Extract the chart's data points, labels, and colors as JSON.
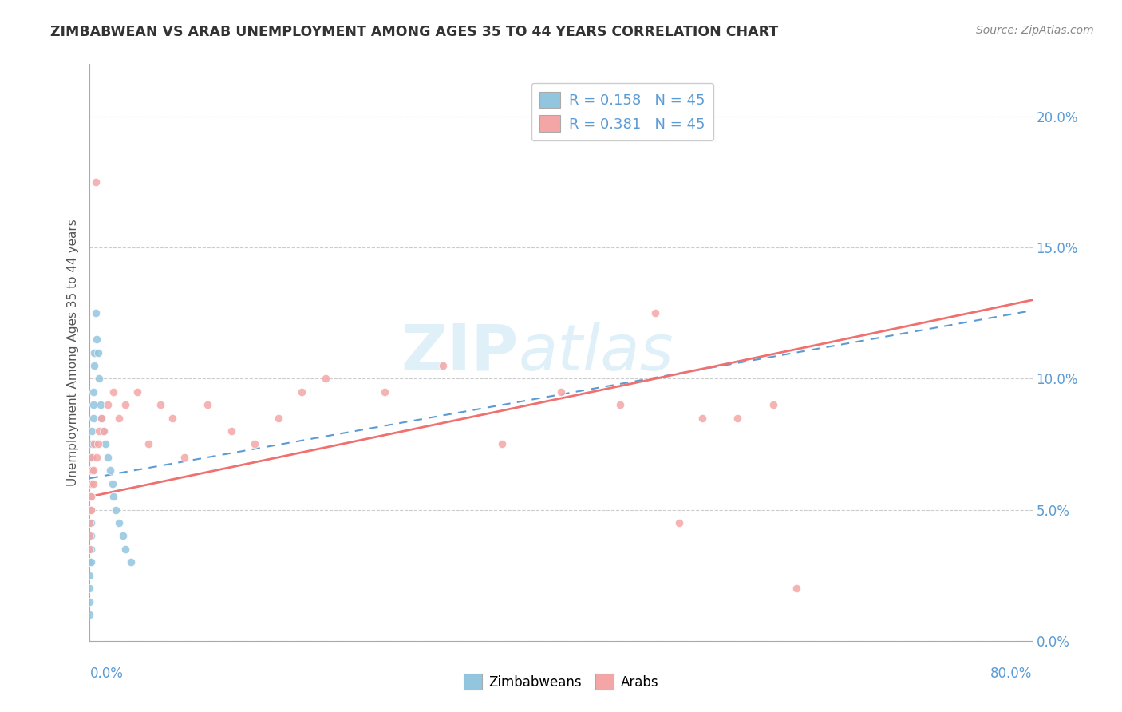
{
  "title": "ZIMBABWEAN VS ARAB UNEMPLOYMENT AMONG AGES 35 TO 44 YEARS CORRELATION CHART",
  "source": "Source: ZipAtlas.com",
  "ylabel": "Unemployment Among Ages 35 to 44 years",
  "ytick_values": [
    0.0,
    5.0,
    10.0,
    15.0,
    20.0
  ],
  "xlim": [
    0.0,
    80.0
  ],
  "ylim": [
    0.0,
    22.0
  ],
  "legend_R_zimbabwean": "R = 0.158",
  "legend_N_zimbabwean": "N = 45",
  "legend_R_arab": "R = 0.381",
  "legend_N_arab": "N = 45",
  "zimbabwean_color": "#92C5DE",
  "arab_color": "#F4A6A6",
  "zimbabwean_line_color": "#5B9BD5",
  "arab_line_color": "#F07070",
  "watermark_zip": "ZIP",
  "watermark_atlas": "atlas",
  "background_color": "#FFFFFF",
  "zimbabwean_x": [
    0.0,
    0.0,
    0.0,
    0.0,
    0.0,
    0.0,
    0.0,
    0.0,
    0.0,
    0.0,
    0.1,
    0.1,
    0.1,
    0.1,
    0.1,
    0.1,
    0.1,
    0.1,
    0.2,
    0.2,
    0.2,
    0.2,
    0.2,
    0.3,
    0.3,
    0.3,
    0.4,
    0.4,
    0.5,
    0.6,
    0.7,
    0.8,
    0.9,
    1.0,
    1.1,
    1.3,
    1.5,
    1.7,
    1.9,
    2.0,
    2.2,
    2.5,
    2.8,
    3.0,
    3.5
  ],
  "zimbabwean_y": [
    5.5,
    5.0,
    4.5,
    4.0,
    3.5,
    3.0,
    2.5,
    2.0,
    1.5,
    1.0,
    6.5,
    6.0,
    5.5,
    5.0,
    4.5,
    4.0,
    3.5,
    3.0,
    8.0,
    7.5,
    7.0,
    6.5,
    6.0,
    9.5,
    9.0,
    8.5,
    11.0,
    10.5,
    12.5,
    11.5,
    11.0,
    10.0,
    9.0,
    8.5,
    8.0,
    7.5,
    7.0,
    6.5,
    6.0,
    5.5,
    5.0,
    4.5,
    4.0,
    3.5,
    3.0
  ],
  "arab_x": [
    0.0,
    0.0,
    0.0,
    0.0,
    0.0,
    0.1,
    0.1,
    0.1,
    0.2,
    0.2,
    0.3,
    0.3,
    0.4,
    0.5,
    0.6,
    0.7,
    0.8,
    1.0,
    1.2,
    1.5,
    2.0,
    2.5,
    3.0,
    4.0,
    5.0,
    6.0,
    7.0,
    8.0,
    10.0,
    12.0,
    14.0,
    16.0,
    18.0,
    20.0,
    25.0,
    30.0,
    35.0,
    40.0,
    45.0,
    48.0,
    50.0,
    52.0,
    55.0,
    58.0,
    60.0
  ],
  "arab_y": [
    5.5,
    5.0,
    4.5,
    4.0,
    3.5,
    6.0,
    5.5,
    5.0,
    7.0,
    6.5,
    6.5,
    6.0,
    7.5,
    17.5,
    7.0,
    7.5,
    8.0,
    8.5,
    8.0,
    9.0,
    9.5,
    8.5,
    9.0,
    9.5,
    7.5,
    9.0,
    8.5,
    7.0,
    9.0,
    8.0,
    7.5,
    8.5,
    9.5,
    10.0,
    9.5,
    10.5,
    7.5,
    9.5,
    9.0,
    12.5,
    4.5,
    8.5,
    8.5,
    9.0,
    2.0
  ]
}
